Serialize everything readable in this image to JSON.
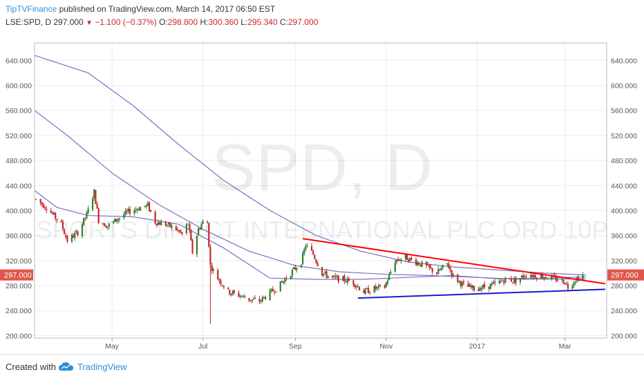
{
  "header": {
    "brand": "TipTVFinance",
    "published": " published on TradingView.com, March 14, 2017 06:50 EST",
    "symbol": "LSE:SPD, D",
    "last": "297.000",
    "change": "−1.100 (−0.37%)",
    "o_label": "O:",
    "o_value": "298.800",
    "h_label": "H:",
    "h_value": "300.360",
    "l_label": "L:",
    "l_value": "295.340",
    "c_label": "C:",
    "c_value": "297.000"
  },
  "watermark": {
    "symbol": "SPD, D",
    "name": "SPORTS DIRECT INTERNATIONAL PLC ORD 10P"
  },
  "footer": {
    "created": "Created with",
    "tradingview": "TradingView"
  },
  "colors": {
    "up": "#2e7d32",
    "down": "#c62828",
    "ma": "#7b6fc4",
    "resistance": "#ff0000",
    "support": "#1a1acd",
    "price_tag": "#e0564a"
  },
  "chart_data": {
    "type": "candlestick",
    "ylim": [
      196,
      668
    ],
    "y_ticks": [
      "200.000",
      "240.000",
      "280.000",
      "320.000",
      "360.000",
      "400.000",
      "440.000",
      "480.000",
      "520.000",
      "560.000",
      "600.000",
      "640.000"
    ],
    "x_ticks": [
      "May",
      "Jul",
      "Sep",
      "Nov",
      "2017",
      "Mar"
    ],
    "x_tick_dates": [
      "2016-05-01",
      "2016-07-01",
      "2016-09-01",
      "2016-11-01",
      "2017-01-01",
      "2017-03-01"
    ],
    "x_range": [
      "2016-03-10",
      "2017-03-29"
    ],
    "last_price_label": "297.000",
    "price_path": [
      [
        "2016-03-11",
        418
      ],
      [
        "2016-03-18",
        405
      ],
      [
        "2016-03-28",
        378
      ],
      [
        "2016-04-01",
        352
      ],
      [
        "2016-04-08",
        365
      ],
      [
        "2016-04-14",
        393
      ],
      [
        "2016-04-19",
        430
      ],
      [
        "2016-04-22",
        385
      ],
      [
        "2016-04-28",
        375
      ],
      [
        "2016-05-05",
        387
      ],
      [
        "2016-05-12",
        398
      ],
      [
        "2016-05-20",
        405
      ],
      [
        "2016-05-25",
        408
      ],
      [
        "2016-05-30",
        382
      ],
      [
        "2016-06-06",
        378
      ],
      [
        "2016-06-13",
        370
      ],
      [
        "2016-06-17",
        362
      ],
      [
        "2016-06-21",
        380
      ],
      [
        "2016-06-24",
        333
      ],
      [
        "2016-06-28",
        370
      ],
      [
        "2016-07-01",
        382
      ],
      [
        "2016-07-04",
        380
      ],
      [
        "2016-07-06",
        312
      ],
      [
        "2016-07-11",
        292
      ],
      [
        "2016-07-18",
        270
      ],
      [
        "2016-07-25",
        265
      ],
      [
        "2016-08-01",
        258
      ],
      [
        "2016-08-08",
        255
      ],
      [
        "2016-08-15",
        268
      ],
      [
        "2016-08-22",
        282
      ],
      [
        "2016-08-29",
        300
      ],
      [
        "2016-09-05",
        318
      ],
      [
        "2016-09-08",
        345
      ],
      [
        "2016-09-13",
        330
      ],
      [
        "2016-09-19",
        300
      ],
      [
        "2016-09-26",
        292
      ],
      [
        "2016-10-03",
        290
      ],
      [
        "2016-10-10",
        285
      ],
      [
        "2016-10-17",
        270
      ],
      [
        "2016-10-24",
        275
      ],
      [
        "2016-10-31",
        278
      ],
      [
        "2016-11-07",
        320
      ],
      [
        "2016-11-14",
        325
      ],
      [
        "2016-11-21",
        318
      ],
      [
        "2016-11-28",
        310
      ],
      [
        "2016-12-05",
        300
      ],
      [
        "2016-12-12",
        315
      ],
      [
        "2016-12-16",
        295
      ],
      [
        "2016-12-23",
        280
      ],
      [
        "2016-12-30",
        275
      ],
      [
        "2017-01-06",
        278
      ],
      [
        "2017-01-13",
        282
      ],
      [
        "2017-01-20",
        290
      ],
      [
        "2017-01-27",
        288
      ],
      [
        "2017-02-03",
        298
      ],
      [
        "2017-02-10",
        296
      ],
      [
        "2017-02-17",
        294
      ],
      [
        "2017-02-24",
        290
      ],
      [
        "2017-03-01",
        286
      ],
      [
        "2017-03-03",
        278
      ],
      [
        "2017-03-08",
        290
      ],
      [
        "2017-03-13",
        297
      ]
    ],
    "ma_long": [
      [
        "2016-03-10",
        648
      ],
      [
        "2016-04-15",
        620
      ],
      [
        "2016-05-15",
        568
      ],
      [
        "2016-06-15",
        505
      ],
      [
        "2016-07-15",
        448
      ],
      [
        "2016-08-15",
        400
      ],
      [
        "2016-09-15",
        360
      ],
      [
        "2016-10-15",
        335
      ],
      [
        "2016-11-15",
        318
      ],
      [
        "2016-12-15",
        310
      ],
      [
        "2017-01-15",
        305
      ],
      [
        "2017-02-15",
        300
      ],
      [
        "2017-03-15",
        297
      ]
    ],
    "ma_mid": [
      [
        "2016-03-10",
        560
      ],
      [
        "2016-04-01",
        520
      ],
      [
        "2016-05-01",
        460
      ],
      [
        "2016-06-01",
        410
      ],
      [
        "2016-07-01",
        370
      ],
      [
        "2016-08-01",
        335
      ],
      [
        "2016-09-01",
        312
      ],
      [
        "2016-10-01",
        302
      ],
      [
        "2016-11-01",
        298
      ],
      [
        "2016-12-01",
        296
      ],
      [
        "2017-01-01",
        293
      ],
      [
        "2017-02-01",
        290
      ],
      [
        "2017-03-15",
        291
      ]
    ],
    "ma_short": [
      [
        "2016-03-10",
        432
      ],
      [
        "2016-03-25",
        405
      ],
      [
        "2016-04-15",
        392
      ],
      [
        "2016-05-15",
        390
      ],
      [
        "2016-06-15",
        378
      ],
      [
        "2016-07-15",
        340
      ],
      [
        "2016-08-15",
        292
      ],
      [
        "2016-09-15",
        290
      ],
      [
        "2016-10-15",
        290
      ],
      [
        "2016-11-15",
        293
      ],
      [
        "2016-12-15",
        296
      ],
      [
        "2017-01-15",
        291
      ],
      [
        "2017-02-15",
        292
      ],
      [
        "2017-03-15",
        294
      ]
    ],
    "trend_resistance": [
      [
        "2016-09-06",
        355
      ],
      [
        "2017-03-28",
        283
      ]
    ],
    "trend_support": [
      [
        "2016-10-13",
        260
      ],
      [
        "2017-03-28",
        274
      ]
    ]
  }
}
